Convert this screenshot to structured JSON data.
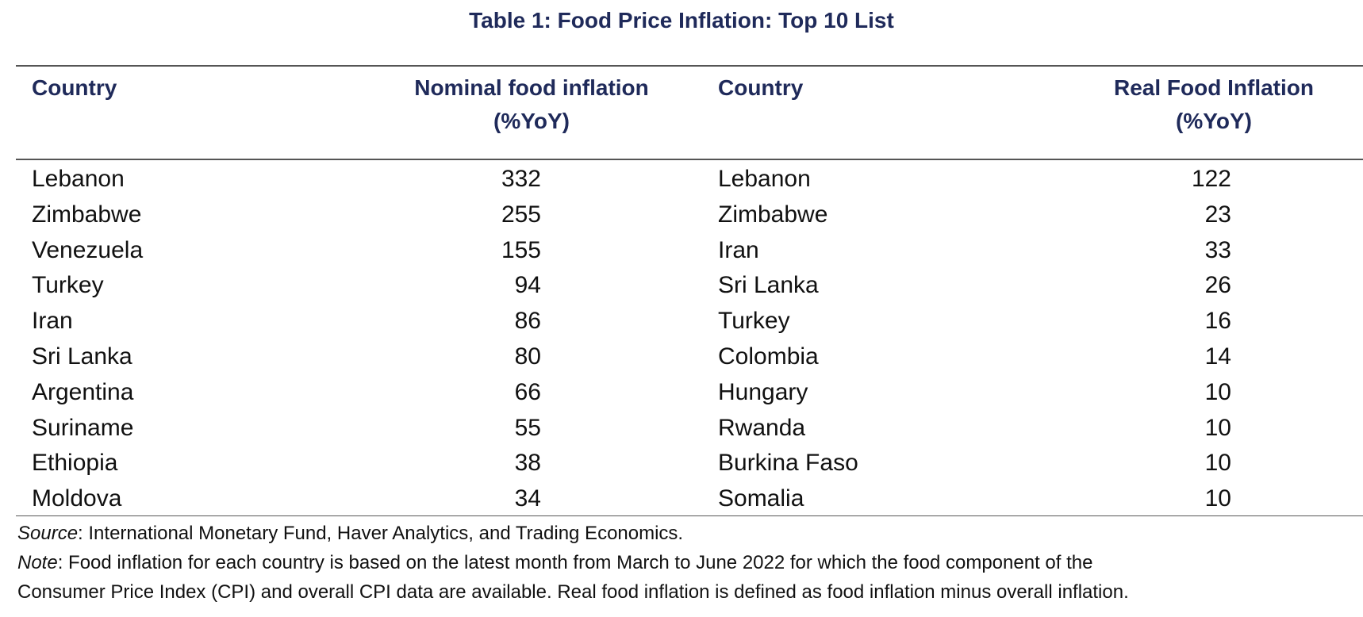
{
  "title": "Table 1: Food Price Inflation: Top 10 List",
  "headers": {
    "country_left": "Country",
    "nominal_line1": "Nominal food inflation",
    "nominal_line2": "(%YoY)",
    "country_right": "Country",
    "real_line1": "Real Food Inflation",
    "real_line2": "(%YoY)"
  },
  "rows": [
    {
      "nominal_country": "Lebanon",
      "nominal_value": "332",
      "real_country": "Lebanon",
      "real_value": "122"
    },
    {
      "nominal_country": "Zimbabwe",
      "nominal_value": "255",
      "real_country": "Zimbabwe",
      "real_value": "23"
    },
    {
      "nominal_country": "Venezuela",
      "nominal_value": "155",
      "real_country": "Iran",
      "real_value": "33"
    },
    {
      "nominal_country": "Turkey",
      "nominal_value": "94",
      "real_country": "Sri Lanka",
      "real_value": "26"
    },
    {
      "nominal_country": "Iran",
      "nominal_value": "86",
      "real_country": "Turkey",
      "real_value": "16"
    },
    {
      "nominal_country": "Sri Lanka",
      "nominal_value": "80",
      "real_country": "Colombia",
      "real_value": "14"
    },
    {
      "nominal_country": "Argentina",
      "nominal_value": "66",
      "real_country": "Hungary",
      "real_value": "10"
    },
    {
      "nominal_country": "Suriname",
      "nominal_value": "55",
      "real_country": "Rwanda",
      "real_value": "10"
    },
    {
      "nominal_country": "Ethiopia",
      "nominal_value": "38",
      "real_country": "Burkina Faso",
      "real_value": "10"
    },
    {
      "nominal_country": "Moldova",
      "nominal_value": "34",
      "real_country": "Somalia",
      "real_value": "10"
    }
  ],
  "footnotes": {
    "source_label": "Source",
    "source_text": ": International Monetary Fund, Haver Analytics, and Trading Economics.",
    "note_label": "Note",
    "note_text_line1": ": Food inflation for each country is based on the latest month from March to June 2022 for which the food component of the",
    "note_text_line2": "Consumer Price Index (CPI) and overall CPI data are available. Real food inflation is defined as food inflation minus overall inflation."
  },
  "colors": {
    "header_text": "#1f2a5a",
    "body_text": "#111111",
    "rule": "#555555"
  }
}
